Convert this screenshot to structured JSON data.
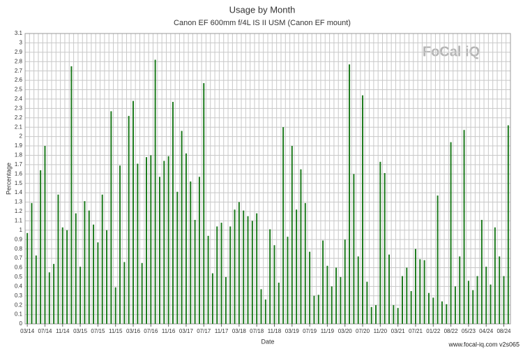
{
  "chart_data": {
    "type": "bar",
    "title": "Usage by Month",
    "subtitle": "Canon EF 600mm f/4L IS II USM (Canon EF mount)",
    "x_label": "Date",
    "y_label": "Percentage",
    "logo": "FoCal iQ",
    "footer": "www.focal-iq.com  v2s065",
    "color": "#1d7a1d",
    "grid": true,
    "ylim": [
      0,
      3.1
    ],
    "yticks": [
      0,
      0.1,
      0.2,
      0.3,
      0.4,
      0.5,
      0.6,
      0.7,
      0.8,
      0.9,
      1,
      1.1,
      1.2,
      1.3,
      1.4,
      1.5,
      1.6,
      1.7,
      1.8,
      1.9,
      2,
      2.1,
      2.2,
      2.3,
      2.4,
      2.5,
      2.6,
      2.7,
      2.8,
      2.9,
      3,
      3.1
    ],
    "categories": [
      "03/14",
      null,
      null,
      null,
      "07/14",
      null,
      null,
      null,
      "11/14",
      null,
      null,
      null,
      "03/15",
      null,
      null,
      null,
      "07/15",
      null,
      null,
      null,
      "11/15",
      null,
      null,
      null,
      "03/16",
      null,
      null,
      null,
      "07/16",
      null,
      null,
      null,
      "11/16",
      null,
      null,
      null,
      "03/17",
      null,
      null,
      null,
      "07/17",
      null,
      null,
      null,
      "11/17",
      null,
      null,
      null,
      "03/18",
      null,
      null,
      null,
      "07/18",
      null,
      null,
      null,
      "11/18",
      null,
      null,
      null,
      "03/19",
      null,
      null,
      null,
      "07/19",
      null,
      null,
      null,
      "11/19",
      null,
      null,
      null,
      "03/20",
      null,
      null,
      null,
      "07/20",
      null,
      null,
      null,
      "11/20",
      null,
      null,
      null,
      "03/21",
      null,
      null,
      null,
      "07/21",
      null,
      null,
      null,
      "01/22",
      null,
      null,
      null,
      "08/22",
      null,
      null,
      null,
      "05/23",
      null,
      null,
      null,
      "04/24",
      null,
      null,
      null,
      "08/24",
      null
    ],
    "values": [
      0.97,
      1.29,
      0.73,
      1.64,
      1.9,
      0.55,
      0.64,
      1.38,
      1.03,
      1.0,
      2.75,
      1.18,
      0.61,
      1.31,
      1.21,
      1.06,
      0.87,
      1.38,
      1.0,
      2.27,
      0.39,
      1.69,
      0.66,
      2.22,
      2.38,
      1.71,
      0.65,
      1.78,
      1.8,
      2.82,
      1.57,
      1.74,
      1.79,
      2.37,
      1.41,
      2.06,
      1.82,
      1.52,
      1.11,
      1.57,
      2.57,
      0.94,
      0.54,
      1.04,
      1.08,
      0.5,
      1.04,
      1.22,
      1.3,
      1.21,
      1.15,
      1.1,
      1.18,
      0.37,
      0.26,
      1.01,
      0.84,
      0.44,
      2.1,
      0.93,
      1.9,
      1.22,
      1.65,
      1.29,
      0.77,
      0.3,
      0.31,
      0.89,
      0.62,
      0.4,
      0.6,
      0.5,
      0.9,
      2.77,
      1.6,
      0.72,
      2.44,
      0.45,
      0.18,
      0.2,
      1.73,
      1.61,
      0.74,
      0.2,
      0.17,
      0.51,
      0.6,
      0.35,
      0.8,
      0.69,
      0.68,
      0.33,
      0.28,
      1.37,
      0.24,
      0.21,
      1.94,
      0.4,
      0.72,
      2.07,
      0.46,
      0.36,
      0.51,
      1.11,
      0.61,
      0.42,
      1.03,
      0.72,
      0.51,
      2.12
    ]
  }
}
